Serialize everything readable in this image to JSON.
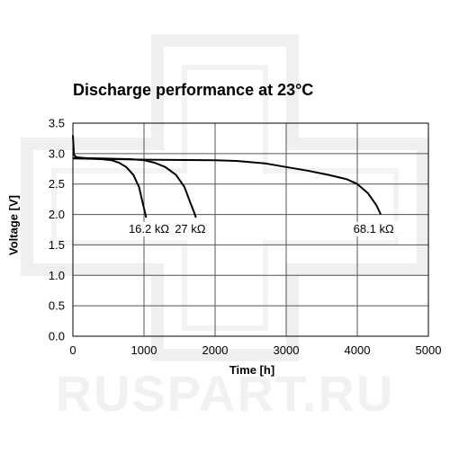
{
  "watermark": {
    "text": "RUSPART.RU"
  },
  "chart_data": {
    "type": "line",
    "title": "Discharge performance at 23°C",
    "xlabel": "Time [h]",
    "ylabel": "Voltage [V]",
    "xlim": [
      0,
      5000
    ],
    "ylim": [
      0,
      3.5
    ],
    "xticks": [
      0,
      1000,
      2000,
      3000,
      4000,
      5000
    ],
    "yticks": [
      0.0,
      0.5,
      1.0,
      1.5,
      2.0,
      2.5,
      3.0,
      3.5
    ],
    "ytick_labels": [
      "0.0",
      "0.5",
      "1.0",
      "1.5",
      "2.0",
      "2.5",
      "3.0",
      "3.5"
    ],
    "grid": true,
    "series": [
      {
        "name": "16.2 kΩ",
        "points": [
          [
            0,
            3.3
          ],
          [
            15,
            2.98
          ],
          [
            50,
            2.94
          ],
          [
            200,
            2.92
          ],
          [
            400,
            2.91
          ],
          [
            550,
            2.89
          ],
          [
            650,
            2.85
          ],
          [
            750,
            2.78
          ],
          [
            850,
            2.65
          ],
          [
            930,
            2.45
          ],
          [
            980,
            2.2
          ],
          [
            1010,
            2.05
          ],
          [
            1030,
            1.95
          ]
        ]
      },
      {
        "name": "27 kΩ",
        "points": [
          [
            0,
            2.93
          ],
          [
            400,
            2.92
          ],
          [
            800,
            2.91
          ],
          [
            1000,
            2.89
          ],
          [
            1150,
            2.85
          ],
          [
            1300,
            2.78
          ],
          [
            1450,
            2.65
          ],
          [
            1570,
            2.45
          ],
          [
            1650,
            2.2
          ],
          [
            1700,
            2.05
          ],
          [
            1730,
            1.95
          ]
        ]
      },
      {
        "name": "68.1 kΩ",
        "points": [
          [
            0,
            2.92
          ],
          [
            1000,
            2.9
          ],
          [
            2000,
            2.89
          ],
          [
            2300,
            2.88
          ],
          [
            2700,
            2.84
          ],
          [
            3000,
            2.78
          ],
          [
            3300,
            2.72
          ],
          [
            3600,
            2.65
          ],
          [
            3850,
            2.58
          ],
          [
            4000,
            2.5
          ],
          [
            4150,
            2.35
          ],
          [
            4270,
            2.15
          ],
          [
            4330,
            2.0
          ]
        ]
      }
    ],
    "annotations": [
      {
        "text": "16.2 kΩ",
        "x": 1070,
        "y": 1.7
      },
      {
        "text": "27 kΩ",
        "x": 1650,
        "y": 1.7
      },
      {
        "text": "68.1 kΩ",
        "x": 4230,
        "y": 1.7
      }
    ]
  }
}
